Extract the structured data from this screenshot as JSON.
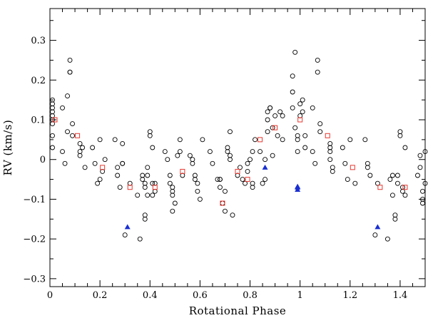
{
  "chart_data": {
    "type": "scatter",
    "xlabel": "Rotational Phase",
    "ylabel": "RV (km/s)",
    "xlim": [
      0,
      1.5
    ],
    "ylim": [
      -0.32,
      0.38
    ],
    "x_ticks": [
      0,
      0.2,
      0.4,
      0.6,
      0.8,
      1,
      1.2,
      1.4
    ],
    "x_tick_labels": [
      "0",
      "0.2",
      "0.4",
      "0.6",
      "0.8",
      "1",
      "1.2",
      "1.4"
    ],
    "y_ticks": [
      -0.3,
      -0.2,
      -0.1,
      0,
      0.1,
      0.2,
      0.3
    ],
    "y_tick_labels": [
      "−0.3",
      "−0.2",
      "−0.1",
      "0",
      "0.1",
      "0.2",
      "0.3"
    ],
    "grid": false,
    "colors": {
      "circle": "#000000",
      "square": "#e8362e",
      "triangle": "#1a2fd0"
    },
    "series": [
      {
        "marker": "open-circle",
        "points": [
          [
            0.01,
            0.15
          ],
          [
            0.01,
            0.14
          ],
          [
            0.01,
            0.13
          ],
          [
            0.01,
            0.12
          ],
          [
            0.01,
            0.11
          ],
          [
            0.01,
            0.1
          ],
          [
            0.01,
            0.09
          ],
          [
            0.01,
            0.06
          ],
          [
            0.01,
            0.03
          ],
          [
            0.05,
            0.13
          ],
          [
            0.05,
            0.02
          ],
          [
            0.06,
            -0.01
          ],
          [
            0.07,
            0.16
          ],
          [
            0.07,
            0.07
          ],
          [
            0.08,
            0.25
          ],
          [
            0.08,
            0.22
          ],
          [
            0.08,
            0.22
          ],
          [
            0.09,
            0.09
          ],
          [
            0.09,
            0.06
          ],
          [
            0.12,
            0.04
          ],
          [
            0.12,
            0.02
          ],
          [
            0.12,
            0.01
          ],
          [
            0.13,
            0.03
          ],
          [
            0.14,
            -0.02
          ],
          [
            0.17,
            0.03
          ],
          [
            0.18,
            -0.01
          ],
          [
            0.19,
            -0.06
          ],
          [
            0.2,
            -0.05
          ],
          [
            0.2,
            0.05
          ],
          [
            0.21,
            -0.03
          ],
          [
            0.22,
            0.0
          ],
          [
            0.26,
            0.05
          ],
          [
            0.27,
            -0.02
          ],
          [
            0.27,
            -0.04
          ],
          [
            0.28,
            -0.07
          ],
          [
            0.29,
            0.04
          ],
          [
            0.29,
            -0.01
          ],
          [
            0.29,
            -0.01
          ],
          [
            0.3,
            -0.19
          ],
          [
            0.32,
            -0.06
          ],
          [
            0.35,
            -0.09
          ],
          [
            0.36,
            -0.2
          ],
          [
            0.37,
            -0.04
          ],
          [
            0.37,
            -0.05
          ],
          [
            0.38,
            -0.06
          ],
          [
            0.38,
            -0.07
          ],
          [
            0.38,
            -0.14
          ],
          [
            0.38,
            -0.15
          ],
          [
            0.39,
            -0.04
          ],
          [
            0.39,
            -0.09
          ],
          [
            0.39,
            -0.02
          ],
          [
            0.4,
            0.07
          ],
          [
            0.4,
            0.06
          ],
          [
            0.41,
            0.03
          ],
          [
            0.41,
            -0.06
          ],
          [
            0.41,
            -0.09
          ],
          [
            0.42,
            -0.06
          ],
          [
            0.42,
            -0.08
          ],
          [
            0.46,
            0.02
          ],
          [
            0.47,
            0.0
          ],
          [
            0.48,
            -0.04
          ],
          [
            0.48,
            -0.06
          ],
          [
            0.49,
            -0.07
          ],
          [
            0.49,
            -0.08
          ],
          [
            0.49,
            -0.09
          ],
          [
            0.49,
            -0.13
          ],
          [
            0.5,
            -0.11
          ],
          [
            0.51,
            0.01
          ],
          [
            0.52,
            0.02
          ],
          [
            0.52,
            0.05
          ],
          [
            0.53,
            -0.04
          ],
          [
            0.56,
            0.01
          ],
          [
            0.57,
            0.0
          ],
          [
            0.57,
            -0.01
          ],
          [
            0.58,
            -0.04
          ],
          [
            0.58,
            -0.05
          ],
          [
            0.59,
            -0.06
          ],
          [
            0.59,
            -0.08
          ],
          [
            0.6,
            -0.1
          ],
          [
            0.61,
            0.05
          ],
          [
            0.64,
            0.02
          ],
          [
            0.65,
            -0.01
          ],
          [
            0.67,
            -0.05
          ],
          [
            0.68,
            -0.05
          ],
          [
            0.68,
            -0.05
          ],
          [
            0.68,
            -0.07
          ],
          [
            0.69,
            -0.11
          ],
          [
            0.7,
            -0.08
          ],
          [
            0.7,
            -0.13
          ],
          [
            0.71,
            0.03
          ],
          [
            0.71,
            0.02
          ],
          [
            0.72,
            0.01
          ],
          [
            0.72,
            0.0
          ],
          [
            0.72,
            0.07
          ],
          [
            0.73,
            -0.14
          ],
          [
            0.75,
            -0.04
          ],
          [
            0.76,
            -0.02
          ],
          [
            0.77,
            -0.05
          ],
          [
            0.78,
            -0.06
          ],
          [
            0.79,
            -0.03
          ],
          [
            0.79,
            -0.01
          ],
          [
            0.8,
            0.0
          ],
          [
            0.81,
            -0.06
          ],
          [
            0.81,
            -0.07
          ],
          [
            0.81,
            0.02
          ],
          [
            0.82,
            0.05
          ],
          [
            0.84,
            0.02
          ],
          [
            0.85,
            -0.06
          ],
          [
            0.86,
            0.0
          ],
          [
            0.86,
            -0.05
          ],
          [
            0.87,
            0.07
          ],
          [
            0.87,
            0.1
          ],
          [
            0.87,
            0.12
          ],
          [
            0.88,
            0.13
          ],
          [
            0.88,
            0.13
          ],
          [
            0.89,
            0.08
          ],
          [
            0.89,
            0.01
          ],
          [
            0.9,
            0.11
          ],
          [
            0.91,
            0.06
          ],
          [
            0.92,
            0.12
          ],
          [
            0.93,
            0.11
          ],
          [
            0.93,
            0.05
          ],
          [
            0.97,
            0.21
          ],
          [
            0.97,
            0.17
          ],
          [
            0.97,
            0.13
          ],
          [
            0.98,
            0.27
          ],
          [
            0.98,
            0.08
          ],
          [
            0.99,
            0.06
          ],
          [
            0.99,
            0.02
          ],
          [
            0.99,
            0.05
          ],
          [
            1.0,
            0.11
          ],
          [
            1.0,
            0.14
          ],
          [
            1.01,
            0.15
          ],
          [
            1.01,
            0.12
          ],
          [
            1.02,
            0.06
          ],
          [
            1.02,
            0.03
          ],
          [
            1.05,
            0.13
          ],
          [
            1.05,
            0.02
          ],
          [
            1.06,
            -0.01
          ],
          [
            1.07,
            0.25
          ],
          [
            1.07,
            0.22
          ],
          [
            1.08,
            0.09
          ],
          [
            1.08,
            0.07
          ],
          [
            1.12,
            0.04
          ],
          [
            1.12,
            0.03
          ],
          [
            1.12,
            0.02
          ],
          [
            1.12,
            0.0
          ],
          [
            1.13,
            -0.02
          ],
          [
            1.13,
            -0.03
          ],
          [
            1.17,
            0.03
          ],
          [
            1.18,
            -0.01
          ],
          [
            1.19,
            -0.05
          ],
          [
            1.2,
            0.05
          ],
          [
            1.22,
            -0.06
          ],
          [
            1.26,
            0.05
          ],
          [
            1.27,
            -0.01
          ],
          [
            1.27,
            -0.02
          ],
          [
            1.28,
            -0.04
          ],
          [
            1.3,
            -0.19
          ],
          [
            1.31,
            -0.06
          ],
          [
            1.35,
            -0.2
          ],
          [
            1.36,
            -0.05
          ],
          [
            1.37,
            -0.04
          ],
          [
            1.37,
            -0.09
          ],
          [
            1.38,
            -0.14
          ],
          [
            1.38,
            -0.15
          ],
          [
            1.39,
            -0.06
          ],
          [
            1.39,
            -0.04
          ],
          [
            1.4,
            0.07
          ],
          [
            1.4,
            0.06
          ],
          [
            1.41,
            -0.07
          ],
          [
            1.41,
            -0.08
          ],
          [
            1.42,
            -0.09
          ],
          [
            1.42,
            0.03
          ],
          [
            1.47,
            -0.04
          ],
          [
            1.48,
            0.01
          ],
          [
            1.48,
            -0.02
          ],
          [
            1.49,
            -0.08
          ],
          [
            1.49,
            -0.1
          ],
          [
            1.49,
            -0.11
          ],
          [
            1.5,
            0.02
          ],
          [
            1.5,
            -0.06
          ]
        ]
      },
      {
        "marker": "open-square",
        "points": [
          [
            0.02,
            0.1
          ],
          [
            0.11,
            0.06
          ],
          [
            0.21,
            -0.02
          ],
          [
            0.32,
            -0.07
          ],
          [
            0.42,
            -0.07
          ],
          [
            0.53,
            -0.03
          ],
          [
            0.69,
            -0.11
          ],
          [
            0.75,
            -0.03
          ],
          [
            0.79,
            -0.05
          ],
          [
            0.84,
            0.05
          ],
          [
            0.9,
            0.08
          ],
          [
            1.0,
            0.1
          ],
          [
            1.11,
            0.06
          ],
          [
            1.21,
            -0.02
          ],
          [
            1.32,
            -0.07
          ],
          [
            1.42,
            -0.07
          ]
        ]
      },
      {
        "marker": "filled-triangle",
        "points": [
          [
            0.31,
            -0.17
          ],
          [
            0.86,
            -0.02
          ],
          [
            0.99,
            -0.07
          ],
          [
            0.99,
            -0.068
          ],
          [
            0.99,
            -0.076
          ],
          [
            1.31,
            -0.17
          ]
        ]
      }
    ]
  }
}
